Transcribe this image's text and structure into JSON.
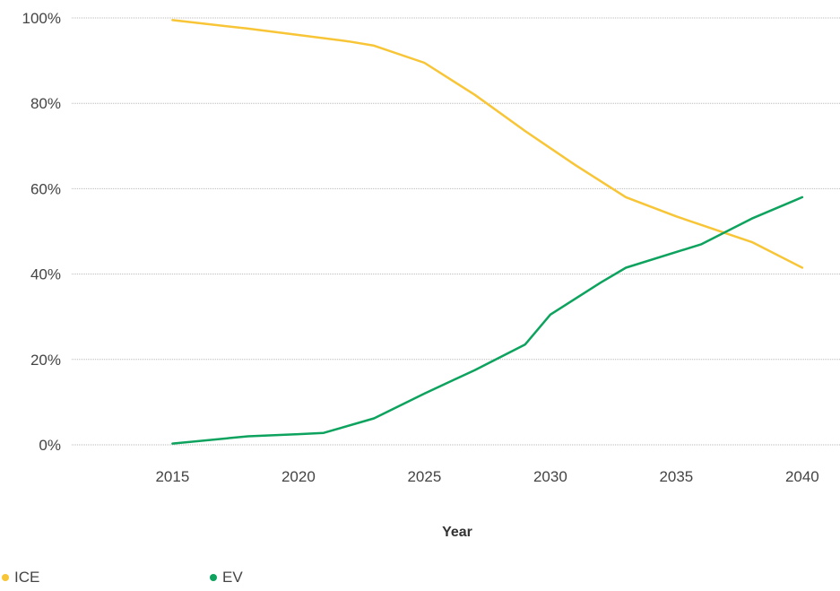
{
  "chart_data": {
    "type": "line",
    "xlabel": "Year",
    "ylabel": "",
    "x_ticks": [
      "2015",
      "2020",
      "2025",
      "2030",
      "2035",
      "2040"
    ],
    "y_ticks": [
      "0%",
      "20%",
      "40%",
      "60%",
      "80%",
      "100%"
    ],
    "xlim": [
      2011,
      2041.5
    ],
    "ylim": [
      0,
      100
    ],
    "grid": true,
    "legend_position": "bottom-left",
    "series": [
      {
        "name": "ICE",
        "color": "#F7C536",
        "x": [
          2015,
          2018,
          2020,
          2022,
          2023,
          2025,
          2027,
          2029,
          2030,
          2031,
          2033,
          2035,
          2037,
          2038,
          2040
        ],
        "values": [
          99.5,
          97.5,
          96,
          94.5,
          93.5,
          89.5,
          82,
          73.5,
          69.5,
          65.5,
          58,
          53.5,
          49.5,
          47.5,
          41.5
        ]
      },
      {
        "name": "EV",
        "color": "#0DA35E",
        "x": [
          2015,
          2018,
          2020,
          2021,
          2023,
          2025,
          2027,
          2029,
          2030,
          2032,
          2033,
          2036,
          2038,
          2040
        ],
        "values": [
          0.3,
          2,
          2.5,
          2.8,
          6.2,
          12,
          17.5,
          23.5,
          30.5,
          38,
          41.5,
          47,
          53,
          58
        ]
      }
    ]
  }
}
